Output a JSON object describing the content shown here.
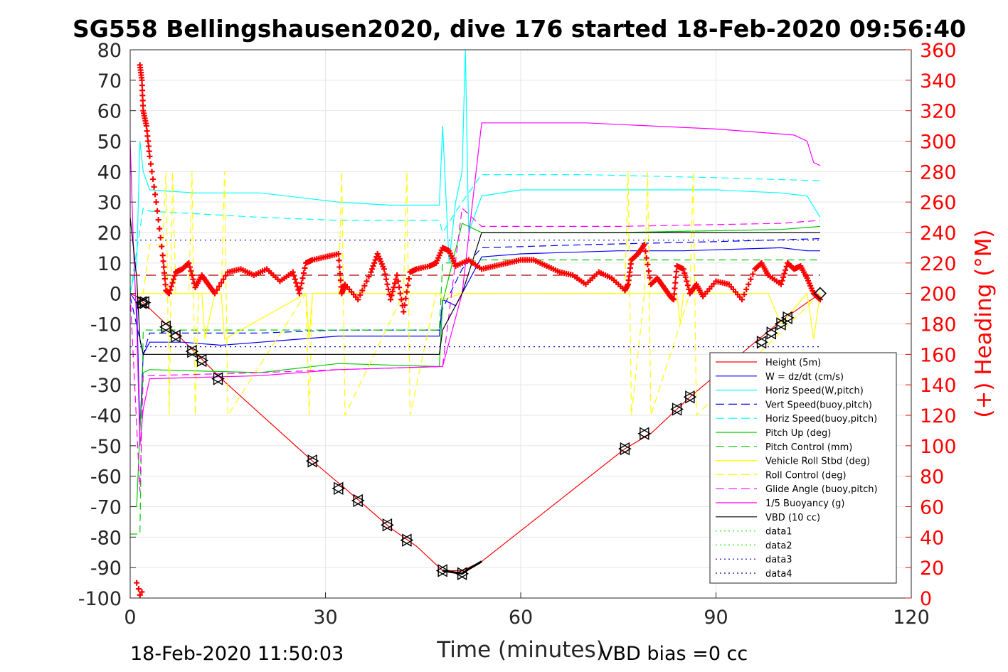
{
  "chart_data": {
    "type": "line",
    "title": "SG558 Bellingshausen2020, dive 176 started 18-Feb-2020 09:56:40",
    "xlabel": "Time (minutes)",
    "ylabel_right": "(+) Heading (°M)",
    "xlim": [
      0,
      120
    ],
    "ylim_left": [
      -100,
      80
    ],
    "ylim_right": [
      0,
      360
    ],
    "xticks": [
      "0",
      "30",
      "60",
      "90",
      "120"
    ],
    "yticks_left": [
      "80",
      "70",
      "60",
      "50",
      "40",
      "30",
      "20",
      "10",
      "0",
      "-10",
      "-20",
      "-30",
      "-40",
      "-50",
      "-60",
      "-70",
      "-80",
      "-90",
      "-100"
    ],
    "yticks_right": [
      "360",
      "340",
      "320",
      "300",
      "280",
      "260",
      "240",
      "220",
      "200",
      "180",
      "160",
      "140",
      "120",
      "100",
      "80",
      "60",
      "40",
      "20",
      "0"
    ],
    "grid": true,
    "legend_position": "bottom-right",
    "footer_left": "18-Feb-2020 11:50:03",
    "footer_right": "VBD bias =0 cc",
    "legend": [
      {
        "label": "Height (5m)",
        "color": "#ff0000",
        "style": "solid"
      },
      {
        "label": "W = dz/dt (cm/s)",
        "color": "#0000ff",
        "style": "solid"
      },
      {
        "label": "Horiz Speed(W,pitch)",
        "color": "#00ffff",
        "style": "solid"
      },
      {
        "label": "Vert Speed(buoy,pitch)",
        "color": "#0000ff",
        "style": "dashed"
      },
      {
        "label": "Horiz Speed(buoy,pitch)",
        "color": "#00ffff",
        "style": "dashed"
      },
      {
        "label": "Pitch Up (deg)",
        "color": "#00cc00",
        "style": "solid"
      },
      {
        "label": "Pitch Control (mm)",
        "color": "#00cc00",
        "style": "dashed"
      },
      {
        "label": "Vehicle Roll Stbd (deg)",
        "color": "#ffff00",
        "style": "solid"
      },
      {
        "label": "Roll Control (deg)",
        "color": "#ffff00",
        "style": "dashed"
      },
      {
        "label": "Glide Angle (buoy,pitch)",
        "color": "#ff00ff",
        "style": "dashed"
      },
      {
        "label": "1/5 Buoyancy (g)",
        "color": "#ff00ff",
        "style": "solid"
      },
      {
        "label": "VBD (10 cc)",
        "color": "#000000",
        "style": "solid"
      },
      {
        "label": "data1",
        "color": "#00ff00",
        "style": "dotted"
      },
      {
        "label": "data2",
        "color": "#00ff00",
        "style": "dotted"
      },
      {
        "label": "data3",
        "color": "#0000aa",
        "style": "dotted"
      },
      {
        "label": "data4",
        "color": "#0000aa",
        "style": "dotted"
      }
    ],
    "series": [
      {
        "name": "Height (5m)",
        "color": "#ff0000",
        "dash": "",
        "width": 1.2,
        "x": [
          0,
          1,
          2,
          7,
          14,
          28,
          33,
          40,
          44,
          48,
          51,
          54,
          76,
          80,
          86,
          96,
          100,
          106
        ],
        "y": [
          0,
          -1,
          -3,
          -13,
          -28,
          -55,
          -64,
          -77,
          -83,
          -91,
          -91,
          -88,
          -51,
          -46,
          -34,
          -16,
          -9,
          0
        ]
      },
      {
        "name": "W = dz/dt (cm/s)",
        "color": "#0000ff",
        "dash": "",
        "width": 1.2,
        "x": [
          0,
          1,
          1.5,
          2,
          3,
          8,
          14,
          20,
          32,
          40,
          47.5,
          48,
          50,
          51,
          52,
          54,
          60,
          75,
          85,
          100,
          104,
          106
        ],
        "y": [
          0,
          -3,
          -45,
          -20,
          -16,
          -16,
          -17,
          -16,
          -14,
          -14,
          -14,
          -2,
          -4,
          0,
          4,
          12,
          13,
          14,
          14,
          15,
          14,
          14
        ]
      },
      {
        "name": "Horiz Speed(W,pitch)",
        "color": "#00ffff",
        "dash": "",
        "width": 1.2,
        "x": [
          0,
          1,
          1.5,
          2,
          3,
          10,
          20,
          32,
          40,
          47.5,
          48,
          49,
          50,
          51,
          51.5,
          52,
          54,
          60,
          75,
          90,
          100,
          104,
          106
        ],
        "y": [
          0,
          10,
          50,
          40,
          34,
          33,
          33,
          30,
          29,
          29,
          55,
          10,
          30,
          40,
          80,
          20,
          32,
          34,
          34,
          34,
          33,
          32,
          25
        ]
      },
      {
        "name": "Vert Speed(buoy,pitch)",
        "color": "#0000ff",
        "dash": "10,6",
        "width": 1.2,
        "x": [
          0,
          2,
          3,
          20,
          32,
          47.5,
          48,
          51,
          54,
          70,
          90,
          106
        ],
        "y": [
          -1,
          -20,
          -13,
          -13,
          -12,
          -12,
          -5,
          8,
          15,
          16,
          17,
          18
        ]
      },
      {
        "name": "Horiz Speed(buoy,pitch)",
        "color": "#00ffff",
        "dash": "10,6",
        "width": 1.2,
        "x": [
          0,
          2,
          3,
          20,
          32,
          47.5,
          48,
          51,
          54,
          70,
          90,
          106
        ],
        "y": [
          0,
          28,
          27,
          25,
          24,
          24,
          20,
          30,
          39,
          39,
          38,
          37
        ]
      },
      {
        "name": "Pitch Up (deg)",
        "color": "#00cc00",
        "dash": "",
        "width": 1.2,
        "x": [
          0,
          1,
          1.5,
          2,
          3,
          20,
          32,
          47.5,
          48,
          51,
          54,
          75,
          100,
          106
        ],
        "y": [
          -70,
          -70,
          -45,
          -26,
          -25,
          -26,
          -23,
          -24,
          -3,
          23,
          20,
          20,
          21,
          22
        ]
      },
      {
        "name": "Pitch Control (mm)",
        "color": "#00cc00",
        "dash": "10,6",
        "width": 1.2,
        "x": [
          0,
          1.5,
          2,
          47.5,
          48,
          51,
          54,
          106
        ],
        "y": [
          -79,
          -79,
          -12,
          -12,
          10,
          10,
          11,
          11
        ]
      },
      {
        "name": "Vehicle Roll Stbd (deg)",
        "color": "#ffff00",
        "dash": "",
        "width": 1.2,
        "x": [
          0,
          2,
          6,
          10,
          11,
          11.5,
          13,
          14,
          14.5,
          27,
          27.5,
          28,
          47.5,
          48,
          51,
          54,
          70,
          84,
          84.5,
          85,
          98,
          100,
          104,
          105,
          106
        ],
        "y": [
          0,
          0,
          0,
          0,
          0,
          -15,
          0,
          0,
          -15,
          0,
          -15,
          0,
          0,
          -2,
          0,
          0,
          0,
          0,
          -10,
          0,
          0,
          -10,
          0,
          -15,
          0
        ]
      },
      {
        "name": "Roll Control (deg)",
        "color": "#ffff00",
        "dash": "10,6",
        "width": 1.2,
        "x": [
          0,
          2,
          3,
          5,
          5.5,
          6,
          6.5,
          7,
          9,
          9.5,
          10,
          10.5,
          11,
          14,
          14.5,
          15,
          27,
          27.5,
          28,
          32,
          32.5,
          33,
          42,
          42.5,
          43,
          47,
          48,
          52,
          70,
          76,
          76.5,
          77,
          79,
          79.5,
          80,
          86,
          86.5,
          87,
          106
        ],
        "y": [
          0,
          0,
          16,
          16,
          40,
          -40,
          40,
          0,
          0,
          40,
          -40,
          0,
          0,
          0,
          40,
          -40,
          0,
          -40,
          0,
          0,
          40,
          -40,
          0,
          40,
          -40,
          0,
          0,
          0,
          0,
          0,
          40,
          -40,
          0,
          40,
          -40,
          0,
          40,
          -40,
          0
        ]
      },
      {
        "name": "Glide Angle (buoy,pitch)",
        "color": "#ff00ff",
        "dash": "10,6",
        "width": 1.2,
        "x": [
          0,
          1.5,
          2,
          3,
          20,
          32,
          47.5,
          48,
          51,
          54,
          75,
          100,
          106
        ],
        "y": [
          0,
          -65,
          -27,
          -27,
          -26,
          -25,
          -24,
          -24,
          28,
          22,
          22,
          23,
          24
        ]
      },
      {
        "name": "1/5 Buoyancy (g)",
        "color": "#ff00ff",
        "dash": "",
        "width": 1.2,
        "x": [
          0,
          0.5,
          1,
          1.5,
          2,
          3,
          20,
          32,
          47.5,
          48,
          51,
          54,
          70,
          90,
          102,
          104,
          105,
          106
        ],
        "y": [
          50,
          15,
          -10,
          -50,
          -38,
          -28,
          -27,
          -25,
          -24,
          -24,
          0,
          56,
          56,
          54,
          52,
          50,
          43,
          42
        ]
      },
      {
        "name": "VBD (10 cc)",
        "color": "#000000",
        "dash": "",
        "width": 1.2,
        "x": [
          0,
          1,
          1.5,
          2,
          47.5,
          48,
          51,
          54,
          106
        ],
        "y": [
          25,
          5,
          -15,
          -20,
          -20,
          -12,
          0,
          20,
          20
        ]
      },
      {
        "name": "data3",
        "color": "#0000aa",
        "dash": "2,5",
        "width": 1.2,
        "x": [
          0,
          106
        ],
        "y": [
          17.5,
          17.5
        ]
      },
      {
        "name": "data4",
        "color": "#0000aa",
        "dash": "2,5",
        "width": 1.2,
        "x": [
          0,
          106
        ],
        "y": [
          -17.5,
          -17.5
        ]
      },
      {
        "name": "",
        "color": "#aa0000",
        "dash": "14,8",
        "width": 1.2,
        "x": [
          0,
          106
        ],
        "y": [
          6,
          6
        ]
      }
    ],
    "heading": {
      "color": "#ff0000",
      "x": [
        1.5,
        1.8,
        2,
        2.5,
        3,
        4,
        5,
        5.5,
        6,
        7,
        8,
        9,
        10,
        11,
        12,
        13,
        15,
        17,
        19,
        21,
        23,
        25,
        26,
        27,
        28,
        30,
        32,
        32.5,
        33,
        35,
        37,
        38,
        39,
        40,
        41,
        42,
        43,
        44,
        46,
        47,
        48,
        49,
        50,
        52,
        54,
        56,
        58,
        60,
        62,
        64,
        66,
        68,
        70,
        72,
        74,
        76,
        76.5,
        77,
        78,
        79,
        80,
        81,
        82,
        83,
        83.5,
        84,
        85,
        86,
        87,
        88,
        90,
        92,
        94,
        96,
        97,
        98,
        100,
        101,
        102,
        103,
        104,
        105,
        106
      ],
      "y": [
        350,
        340,
        320,
        310,
        290,
        260,
        225,
        202,
        200,
        214,
        216,
        220,
        204,
        212,
        206,
        200,
        214,
        216,
        212,
        216,
        208,
        214,
        200,
        220,
        222,
        224,
        226,
        200,
        206,
        196,
        214,
        226,
        216,
        196,
        212,
        188,
        214,
        216,
        218,
        220,
        230,
        228,
        218,
        222,
        216,
        218,
        220,
        222,
        222,
        218,
        214,
        212,
        206,
        214,
        210,
        202,
        206,
        222,
        226,
        232,
        206,
        210,
        204,
        198,
        196,
        218,
        216,
        200,
        206,
        198,
        208,
        206,
        196,
        216,
        220,
        212,
        206,
        220,
        216,
        218,
        210,
        200,
        196
      ]
    },
    "heading_early": {
      "x": [
        1.0,
        1.3,
        1.5,
        1.8
      ],
      "y": [
        10,
        6,
        2,
        4
      ]
    },
    "markers": {
      "x": [
        1.8,
        2.2,
        5.5,
        7,
        9.5,
        11,
        13.5,
        28,
        32,
        35,
        39.5,
        42.5,
        48,
        51,
        76,
        79,
        84,
        86,
        97,
        98.5,
        100,
        101
      ],
      "y": [
        -3,
        -3,
        -11,
        -14,
        -19,
        -22,
        -28,
        -55,
        -64,
        -68,
        -76,
        -81,
        -91,
        -92,
        -51,
        -46,
        -38,
        -34,
        -16,
        -13,
        -10,
        -8
      ]
    },
    "marker_end": {
      "x": 106,
      "y": 0
    }
  }
}
